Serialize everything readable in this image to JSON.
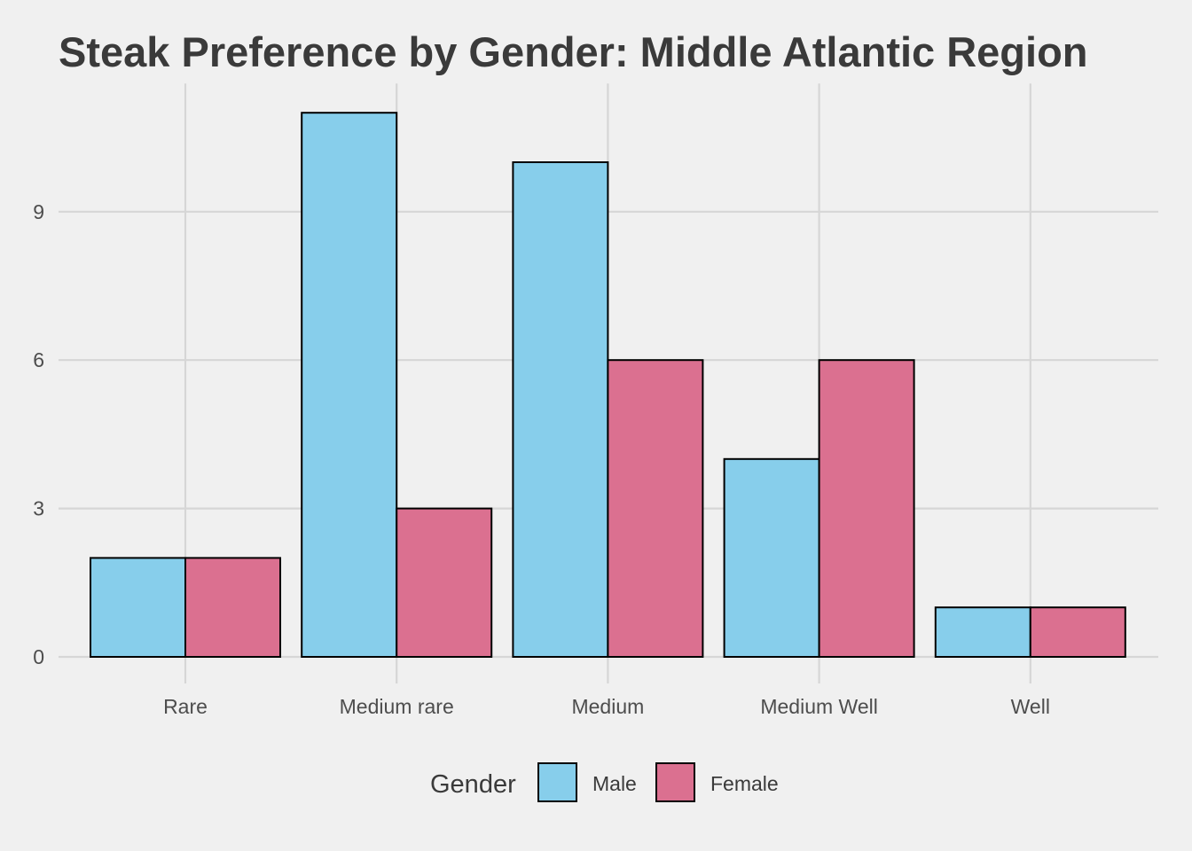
{
  "chart_data": {
    "type": "bar",
    "title": "Steak Preference by Gender: Middle Atlantic Region",
    "xlabel": "",
    "ylabel": "",
    "categories": [
      "Rare",
      "Medium rare",
      "Medium",
      "Medium Well",
      "Well"
    ],
    "series": [
      {
        "name": "Male",
        "values": [
          2,
          11,
          10,
          4,
          1
        ],
        "color": "#87ceeb"
      },
      {
        "name": "Female",
        "values": [
          2,
          3,
          6,
          6,
          1
        ],
        "color": "#db7090"
      }
    ],
    "ylim": [
      0,
      11.5
    ],
    "yticks": [
      0,
      3,
      6,
      9
    ],
    "grid": true,
    "legend": {
      "title": "Gender",
      "placement": "bottom"
    }
  }
}
